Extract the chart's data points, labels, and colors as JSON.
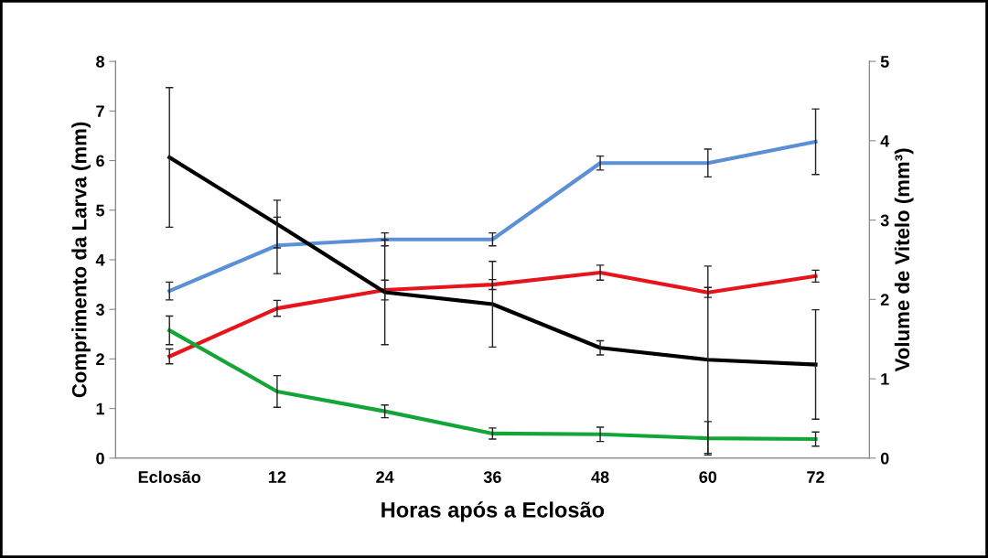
{
  "chart_data": {
    "type": "line",
    "xlabel": "Horas após a Eclosão",
    "ylabel": "Comprimento da Larva (mm)",
    "y2label": "Volume de Vitelo (mm³)",
    "categories": [
      "Eclosão",
      "12",
      "24",
      "36",
      "48",
      "60",
      "72"
    ],
    "ylim": [
      0,
      8
    ],
    "yticks": [
      0,
      1,
      2,
      3,
      4,
      5,
      6,
      7,
      8
    ],
    "y2lim": [
      0,
      5
    ],
    "y2ticks": [
      0,
      1,
      2,
      3,
      4,
      5
    ],
    "grid": false,
    "marker": "none",
    "line_style": "solid",
    "series": [
      {
        "color": "#5b8fd6",
        "values": [
          3.37,
          4.29,
          4.41,
          4.41,
          5.95,
          5.95,
          6.38
        ],
        "errors": [
          0.18,
          0.57,
          0.13,
          0.13,
          0.14,
          0.28,
          0.66
        ]
      },
      {
        "color": "#e8141b",
        "values": [
          2.05,
          3.02,
          3.39,
          3.5,
          3.74,
          3.34,
          3.67
        ],
        "errors": [
          0.15,
          0.16,
          0.2,
          0.1,
          0.15,
          0.1,
          0.12
        ]
      },
      {
        "color": "#000000",
        "axis": "y2",
        "values": [
          3.79,
          2.95,
          2.09,
          1.94,
          1.39,
          1.24,
          1.18
        ],
        "errors": [
          0.88,
          0.3,
          0.66,
          0.54,
          0.09,
          1.18,
          0.69
        ]
      },
      {
        "color": "#13a538",
        "axis": "y2",
        "values": [
          1.61,
          0.84,
          0.59,
          0.31,
          0.3,
          0.25,
          0.24
        ],
        "errors": [
          0.18,
          0.2,
          0.08,
          0.07,
          0.09,
          0.21,
          0.09
        ]
      }
    ]
  }
}
